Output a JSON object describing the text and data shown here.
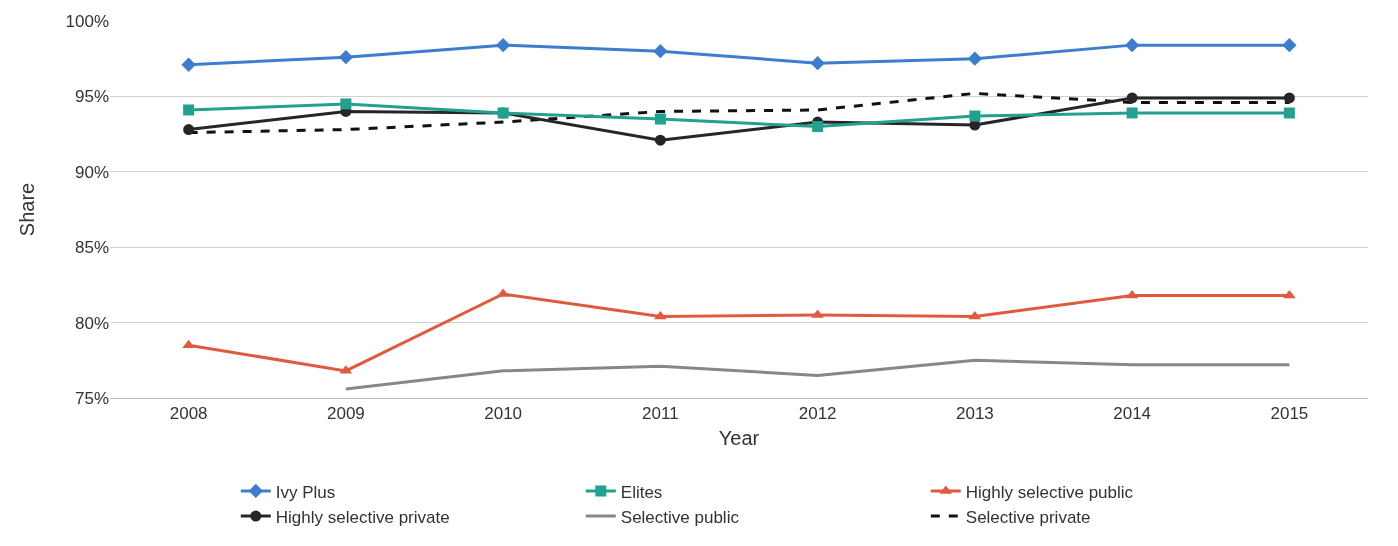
{
  "chart_data": {
    "type": "line",
    "xlabel": "Year",
    "ylabel": "Share",
    "categories": [
      "2008",
      "2009",
      "2010",
      "2011",
      "2012",
      "2013",
      "2014",
      "2015"
    ],
    "series": [
      {
        "name": "Ivy Plus",
        "color": "#3c7dd0",
        "marker": "diamond",
        "line_style": "solid",
        "values": [
          97.1,
          97.6,
          98.4,
          98.0,
          97.2,
          97.5,
          98.4,
          98.4
        ]
      },
      {
        "name": "Elites",
        "color": "#22a090",
        "marker": "square",
        "line_style": "solid",
        "values": [
          94.1,
          94.5,
          93.9,
          93.5,
          93.0,
          93.7,
          93.9,
          93.9
        ]
      },
      {
        "name": "Highly selective public",
        "color": "#e05a40",
        "marker": "triangle",
        "line_style": "solid",
        "values": [
          78.5,
          76.8,
          81.9,
          80.4,
          80.5,
          80.4,
          81.8,
          81.8
        ]
      },
      {
        "name": "Highly selective private",
        "color": "#262626",
        "marker": "circle",
        "line_style": "solid",
        "values": [
          92.8,
          94.0,
          93.9,
          92.1,
          93.3,
          93.1,
          94.9,
          94.9
        ]
      },
      {
        "name": "Selective public",
        "color": "#878787",
        "marker": "none",
        "line_style": "solid",
        "values": [
          null,
          75.6,
          76.8,
          77.1,
          76.5,
          77.5,
          77.2,
          77.2
        ]
      },
      {
        "name": "Selective private",
        "color": "#111111",
        "marker": "none",
        "line_style": "dashed",
        "values": [
          92.6,
          92.8,
          93.3,
          94.0,
          94.1,
          95.2,
          94.6,
          94.6
        ]
      }
    ],
    "ylim": [
      75,
      100
    ],
    "yticks": [
      {
        "value": 75,
        "label": "75%"
      },
      {
        "value": 80,
        "label": "80%"
      },
      {
        "value": 85,
        "label": "85%"
      },
      {
        "value": 90,
        "label": "90%"
      },
      {
        "value": 95,
        "label": "95%"
      },
      {
        "value": 100,
        "label": "100%"
      }
    ],
    "grid": "y",
    "legend": "bottom"
  }
}
